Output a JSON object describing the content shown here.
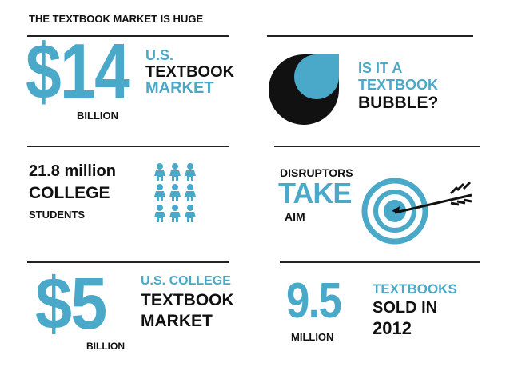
{
  "title": "THE TEXTBOOK MARKET IS HUGE",
  "colors": {
    "accent": "#4aa9c9",
    "dark": "#111111"
  },
  "panels": {
    "us_market": {
      "value": "$14",
      "line1": "U.S.",
      "line2": "TEXTBOOK",
      "line3": "MARKET",
      "unit": "BILLION"
    },
    "bubble": {
      "icon": "drop-bubble-icon",
      "line1": "IS IT A",
      "line2": "TEXTBOOK",
      "line3": "BUBBLE?"
    },
    "students": {
      "value": "21.8 million",
      "line2": "COLLEGE",
      "line3": "STUDENTS",
      "icon": "people-icon-grid"
    },
    "disruptors": {
      "line1": "DISRUPTORS",
      "line2": "TAKE",
      "line3": "AIM",
      "icon": "target-arrow-icon"
    },
    "college_market": {
      "value": "$5",
      "line1": "U.S. COLLEGE",
      "line2": "TEXTBOOK",
      "line3": "MARKET",
      "unit": "BILLION"
    },
    "sold": {
      "value": "9.5",
      "unit": "MILLION",
      "line1": "TEXTBOOKS",
      "line2": "SOLD IN",
      "line3": "2012"
    }
  }
}
